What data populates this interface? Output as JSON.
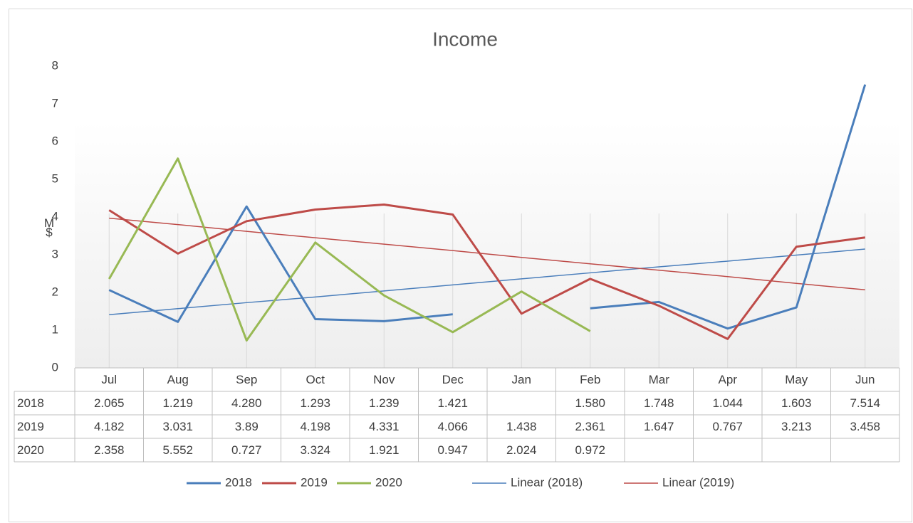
{
  "chart_data": {
    "type": "line",
    "title": "Income",
    "y_label": "M$",
    "categories": [
      "Jul",
      "Aug",
      "Sep",
      "Oct",
      "Nov",
      "Dec",
      "Jan",
      "Feb",
      "Mar",
      "Apr",
      "May",
      "Jun"
    ],
    "series": [
      {
        "name": "2018",
        "color": "#4a7ebb",
        "values": [
          2.065,
          1.219,
          4.28,
          1.293,
          1.239,
          1.421,
          null,
          1.58,
          1.748,
          1.044,
          1.603,
          7.514
        ],
        "value_labels": [
          "2.065",
          "1.219",
          "4.280",
          "1.293",
          "1.239",
          "1.421",
          null,
          "1.580",
          "1.748",
          "1.044",
          "1.603",
          "7.514"
        ]
      },
      {
        "name": "2019",
        "color": "#be4b48",
        "values": [
          4.182,
          3.031,
          3.89,
          4.198,
          4.331,
          4.066,
          1.438,
          2.361,
          1.647,
          0.767,
          3.213,
          3.458
        ],
        "value_labels": [
          "4.182",
          "3.031",
          "3.89",
          "4.198",
          "4.331",
          "4.066",
          "1.438",
          "2.361",
          "1.647",
          "0.767",
          "3.213",
          "3.458"
        ]
      },
      {
        "name": "2020",
        "color": "#98b954",
        "values": [
          2.358,
          5.552,
          0.727,
          3.324,
          1.921,
          0.947,
          2.024,
          0.972,
          null,
          null,
          null,
          null
        ],
        "value_labels": [
          "2.358",
          "5.552",
          "0.727",
          "3.324",
          "1.921",
          "0.947",
          "2.024",
          "0.972",
          null,
          null,
          null,
          null
        ]
      }
    ],
    "trendlines": [
      {
        "name": "Linear (2018)",
        "color": "#4a7ebb",
        "values": [
          1.41,
          1.57,
          1.73,
          1.88,
          2.04,
          2.2,
          2.36,
          2.52,
          2.68,
          2.83,
          2.99,
          3.15
        ]
      },
      {
        "name": "Linear (2019)",
        "color": "#be4b48",
        "values": [
          3.97,
          3.8,
          3.62,
          3.45,
          3.28,
          3.11,
          2.93,
          2.76,
          2.59,
          2.42,
          2.24,
          2.07
        ]
      }
    ],
    "ylim": [
      0,
      8
    ],
    "yticks": [
      0,
      1,
      2,
      3,
      4,
      5,
      6,
      7,
      8
    ],
    "legend": "bottom"
  }
}
